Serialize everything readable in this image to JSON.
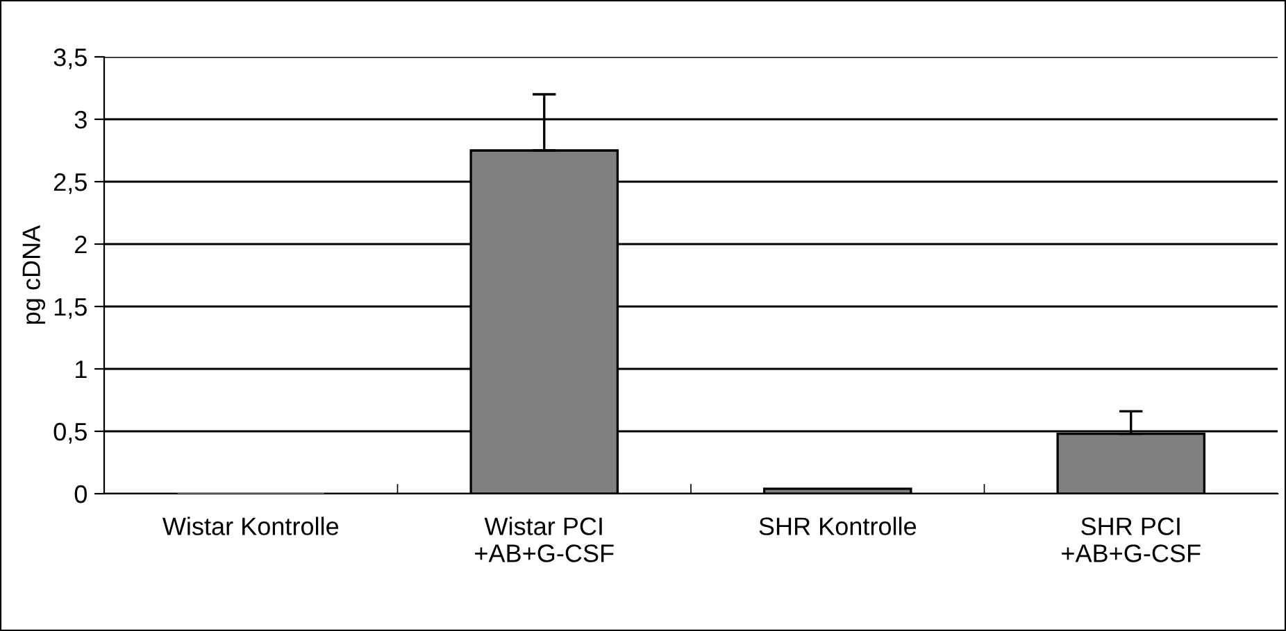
{
  "chart_data": {
    "type": "bar",
    "ylabel": "pg cDNA",
    "categories": [
      "Wistar Kontrolle",
      "Wistar PCI\n+AB+G-CSF",
      "SHR Kontrolle",
      "SHR PCI\n+AB+G-CSF"
    ],
    "values": [
      0,
      2.75,
      0.04,
      0.48
    ],
    "errors": [
      null,
      [
        2.75,
        3.2
      ],
      null,
      [
        0.48,
        0.66
      ]
    ],
    "color": "#808080",
    "ylim": [
      0,
      3.5
    ],
    "yticks": [
      0,
      {
        "value": 0.5,
        "label": "0,5"
      },
      1,
      {
        "value": 1.5,
        "label": "1,5"
      },
      2,
      {
        "value": 2.5,
        "label": "2,5"
      },
      3,
      {
        "value": 3.5,
        "label": "3,5"
      }
    ],
    "grid": "y"
  }
}
